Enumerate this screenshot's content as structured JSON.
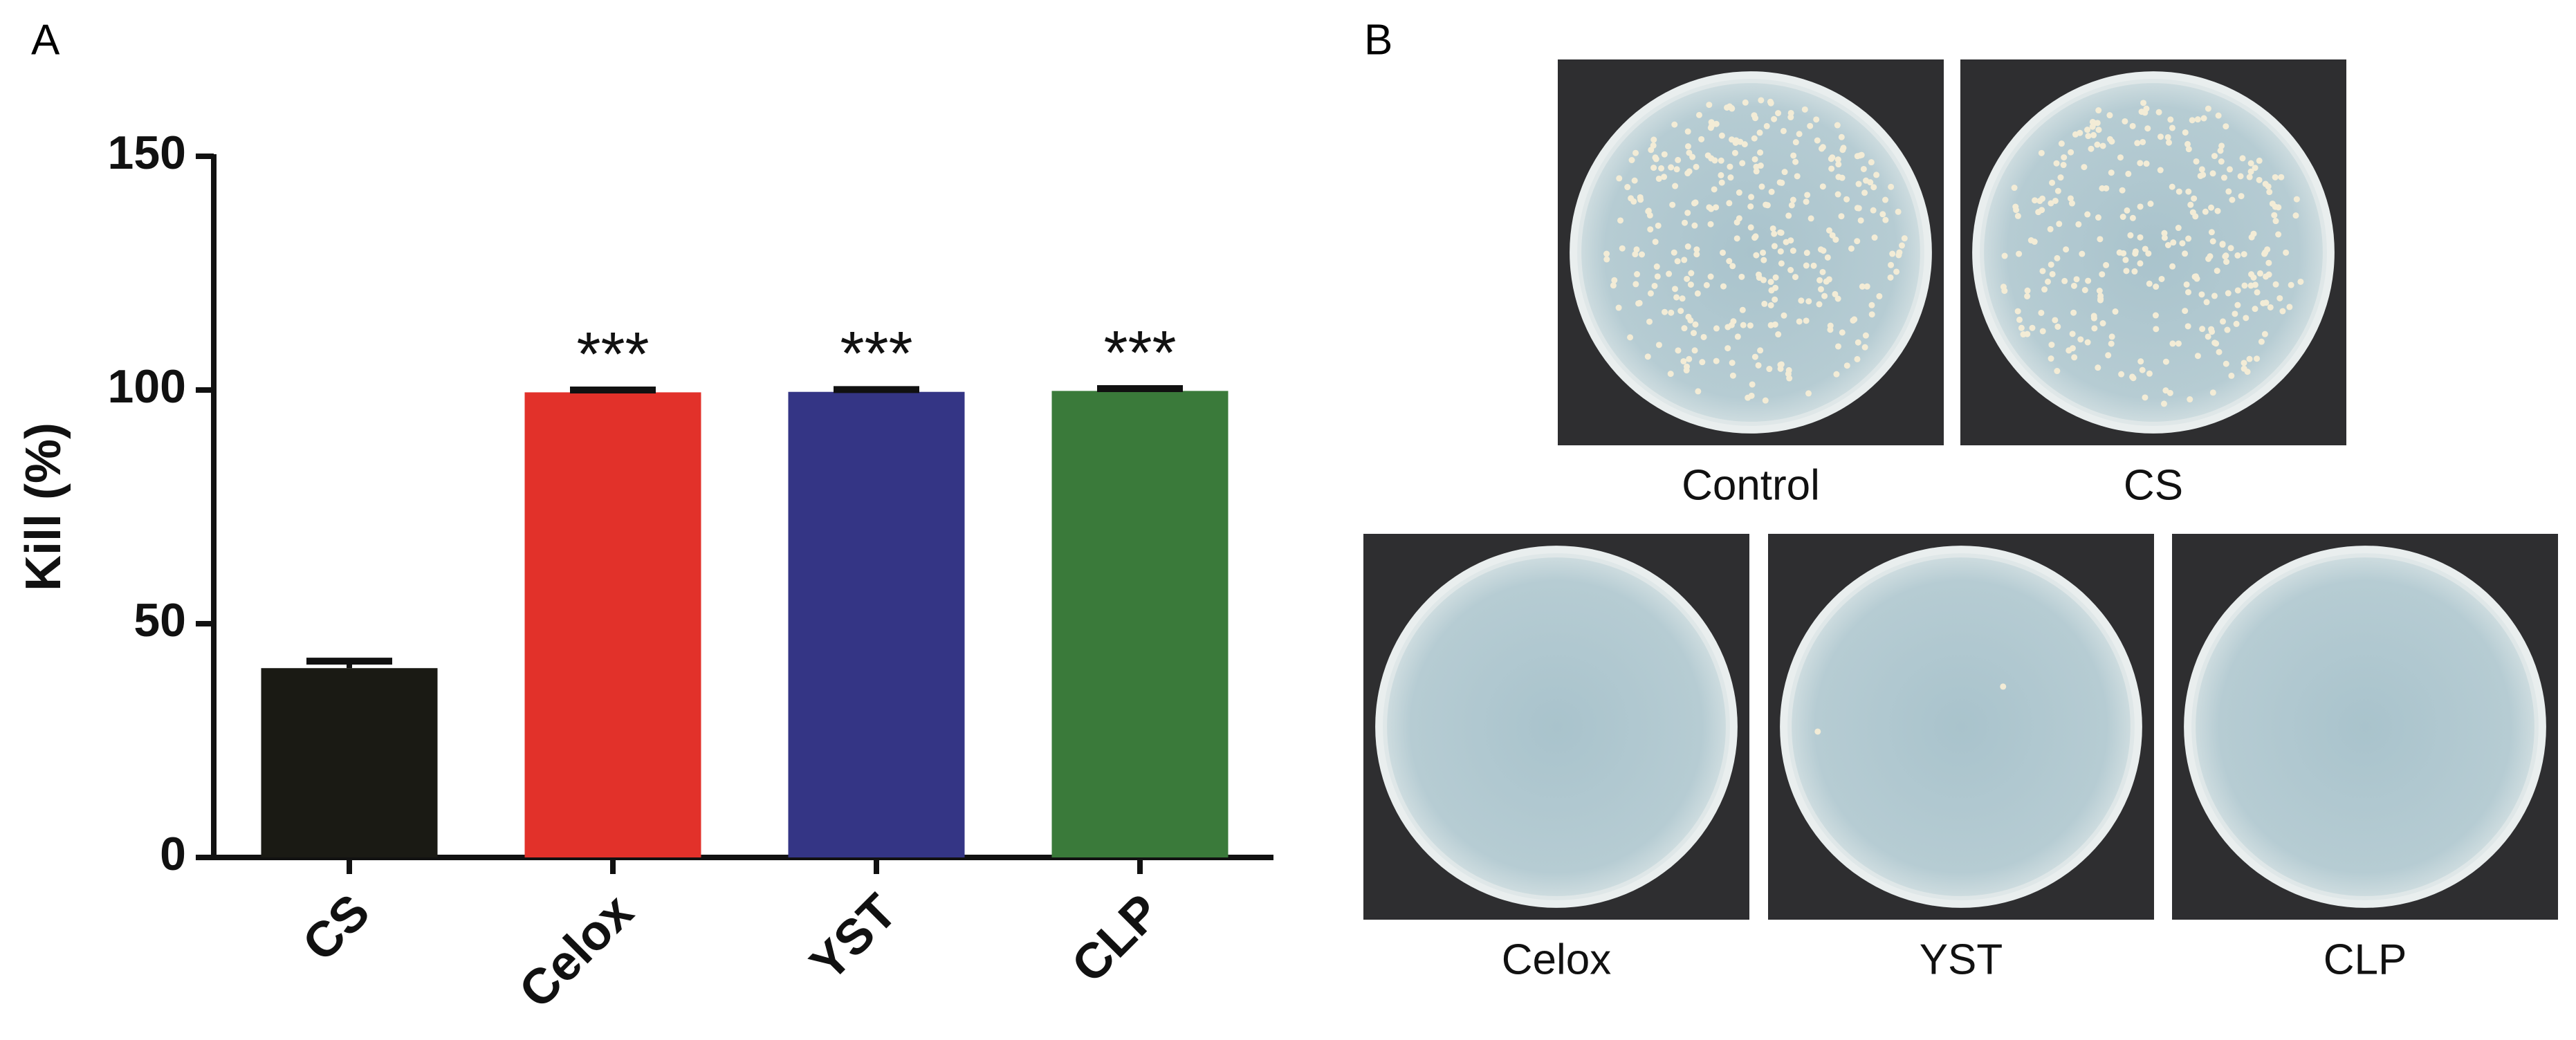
{
  "panel_labels": [
    "A",
    "B"
  ],
  "chart_data": {
    "type": "bar",
    "ylabel": "Kill (%)",
    "categories": [
      "CS",
      "Celox",
      "YST",
      "CLP"
    ],
    "values": [
      40.5,
      99.5,
      99.6,
      99.8
    ],
    "errors": [
      1.5,
      0.5,
      0.5,
      0.5
    ],
    "colors": [
      "#1a1a14",
      "#e2312a",
      "#343585",
      "#3a7a3a"
    ],
    "annotations": [
      null,
      "***",
      "***",
      "***"
    ],
    "ylim": [
      0,
      150
    ],
    "yticks": [
      0,
      50,
      100,
      150
    ]
  },
  "plates": [
    "Control",
    "CS",
    "Celox",
    "YST",
    "CLP"
  ]
}
